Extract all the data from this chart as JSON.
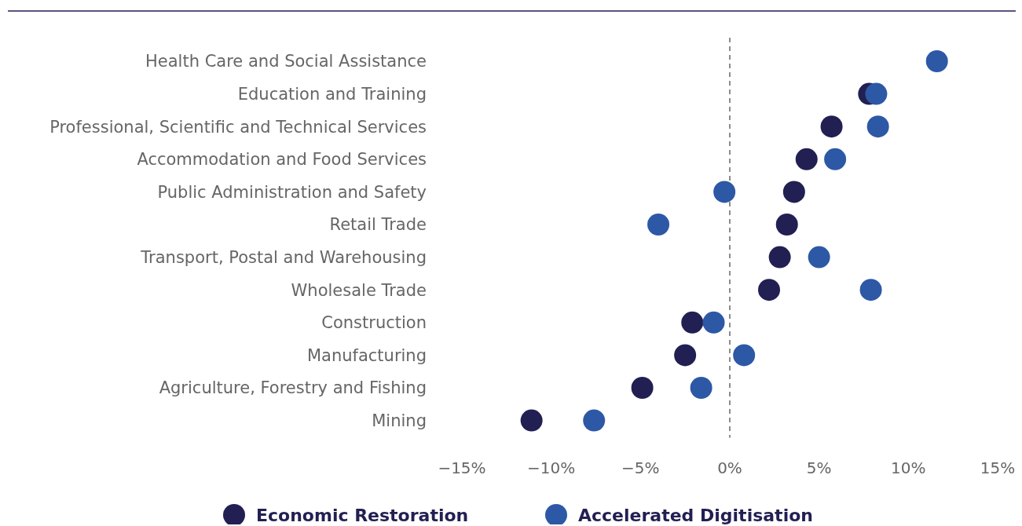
{
  "chart_data": {
    "type": "scatter",
    "categories": [
      "Health Care and Social Assistance",
      "Education and Training",
      "Professional, Scientific and Technical Services",
      "Accommodation and Food Services",
      "Public Administration and Safety",
      "Retail Trade",
      "Transport, Postal and Warehousing",
      "Wholesale Trade",
      "Construction",
      "Manufacturing",
      "Agriculture, Forestry and Fishing",
      "Mining"
    ],
    "orientation": "horizontal",
    "series": [
      {
        "name": "Economic Restoration",
        "color": "#221f52",
        "values": [
          null,
          7.8,
          5.7,
          4.3,
          3.6,
          3.2,
          2.8,
          2.2,
          -2.1,
          -2.5,
          -4.9,
          -11.1
        ]
      },
      {
        "name": "Accelerated Digitisation",
        "color": "#2d58a6",
        "values": [
          11.6,
          8.2,
          8.3,
          5.9,
          -0.3,
          -4.0,
          5.0,
          7.9,
          -0.9,
          0.8,
          -1.6,
          -7.6
        ]
      }
    ],
    "xlim": [
      -15,
      15
    ],
    "xticks": [
      {
        "value": -15,
        "label": "−15%"
      },
      {
        "value": -10,
        "label": "−10%"
      },
      {
        "value": -5,
        "label": "−5%"
      },
      {
        "value": 0,
        "label": "0%"
      },
      {
        "value": 5,
        "label": "5%"
      },
      {
        "value": 10,
        "label": "10%"
      },
      {
        "value": 15,
        "label": "15%"
      }
    ],
    "ref_lines": [
      {
        "axis": "x",
        "value": 0,
        "color": "#8c8c8c",
        "line_style": "dashed"
      }
    ],
    "marker": "circle",
    "legend": "bottom",
    "grid": false
  }
}
